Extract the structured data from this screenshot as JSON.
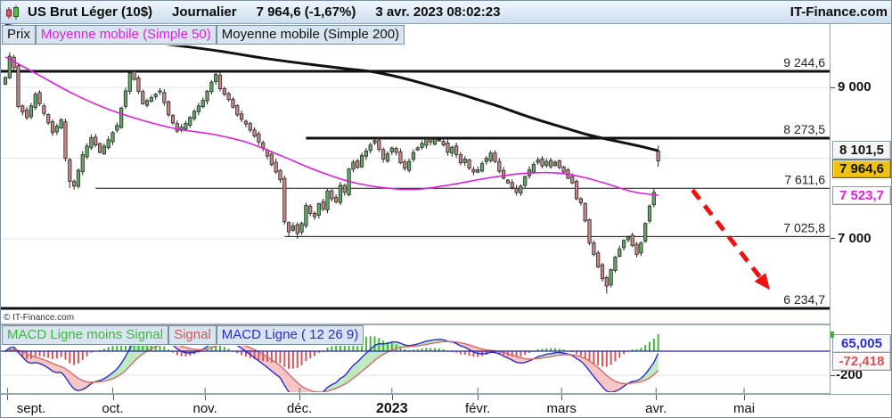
{
  "title_bar": {
    "instrument": "US Brut Léger (10$)",
    "timeframe": "Journalier",
    "quote": "7 964,6 (-1,67%)",
    "datetime": "3 avr. 2023 08:02:23",
    "brand": "IT-Finance.com"
  },
  "price_legend": {
    "price_label": "Prix",
    "ma50_label": "Moyenne mobile (Simple 50)",
    "ma200_label": "Moyenne mobile (Simple 200)"
  },
  "macd_legend": {
    "hist_label": "MACD Ligne moins Signal",
    "signal_label": "Signal",
    "macd_label": "MACD Ligne ( 12 26 9)"
  },
  "watermark": "© IT-Finance.com",
  "colors": {
    "up_fill": "#63a863",
    "down_fill": "#c98484",
    "candle_stroke": "#2a2a2a",
    "wick": "#222222",
    "ma50": "#dd1edd",
    "ma200": "#111111",
    "level": "#111111",
    "grid": "#e4e4e4",
    "arrow": "#ee1111",
    "macd_line": "#2a2ad0",
    "signal_line": "#d46a6a",
    "hist_up": "#3cb83c",
    "hist_down": "#d45555",
    "fill_up": "rgba(150,222,150,0.6)",
    "fill_down": "rgba(240,160,160,0.6)",
    "price_box_bg": "#efc113",
    "neutral_box_bg": "#f4f4f4",
    "ma50_text": "#dd1edd",
    "macd_text": "#2a2ad0",
    "signal_text": "#d45555"
  },
  "chart_data": {
    "type": "candlestick",
    "scale": "log",
    "price_range": [
      6080,
      10000
    ],
    "gridlines": [
      9000,
      8000,
      7000
    ],
    "axis_ticks": [
      {
        "label": "9 000",
        "value": 9000
      },
      {
        "label": "7 000",
        "value": 7000
      }
    ],
    "levels": [
      {
        "label": "9 244,6",
        "value": 9244.6,
        "weight": 3,
        "from_i": -1
      },
      {
        "label": "8 273,5",
        "value": 8273.5,
        "weight": 3,
        "from_i": 70
      },
      {
        "label": "7 611,6",
        "value": 7611.6,
        "weight": 1,
        "from_i": 21
      },
      {
        "label": "7 025,8",
        "value": 7025.8,
        "weight": 1,
        "from_i": 65
      },
      {
        "label": "6 234,7",
        "value": 6234.7,
        "weight": 3,
        "from_i": -1
      }
    ],
    "value_boxes": [
      {
        "label": "8 101,5",
        "value": 8101.5,
        "series": "ma200"
      },
      {
        "label": "7 964,6",
        "value": 7964.6,
        "series": "price"
      },
      {
        "label": "7 523,7",
        "value": 7523.7,
        "series": "ma50"
      }
    ],
    "candle_anchors": [
      [
        0,
        9150,
        9050
      ],
      [
        1,
        9480,
        null,
        9540
      ],
      [
        2,
        9300
      ],
      [
        3,
        8720
      ],
      [
        5,
        8560
      ],
      [
        7,
        8900
      ],
      [
        9,
        8620
      ],
      [
        11,
        8350
      ],
      [
        13,
        8530
      ],
      [
        14,
        8000
      ],
      [
        15,
        7700,
        null,
        null,
        7615
      ],
      [
        16,
        7640
      ],
      [
        18,
        8050
      ],
      [
        20,
        8280
      ],
      [
        22,
        8080
      ],
      [
        24,
        8250
      ],
      [
        26,
        8450
      ],
      [
        28,
        8950
      ],
      [
        29,
        9220,
        null,
        9265
      ],
      [
        30,
        9120
      ],
      [
        32,
        8760
      ],
      [
        34,
        8850
      ],
      [
        36,
        8950
      ],
      [
        38,
        8600
      ],
      [
        40,
        8370
      ],
      [
        42,
        8480
      ],
      [
        44,
        8650
      ],
      [
        46,
        8810
      ],
      [
        48,
        9080
      ],
      [
        49,
        9200,
        null,
        9248
      ],
      [
        50,
        8980
      ],
      [
        52,
        8820
      ],
      [
        54,
        8600
      ],
      [
        56,
        8470
      ],
      [
        58,
        8300
      ],
      [
        60,
        8140
      ],
      [
        62,
        7920
      ],
      [
        64,
        7720
      ],
      [
        65,
        7200
      ],
      [
        66,
        7080,
        null,
        null,
        7020
      ],
      [
        67,
        7150
      ],
      [
        68,
        7060,
        null,
        null,
        7000
      ],
      [
        69,
        7180
      ],
      [
        70,
        7400
      ],
      [
        71,
        7300
      ],
      [
        72,
        7260
      ],
      [
        73,
        7420
      ],
      [
        74,
        7350
      ],
      [
        75,
        7580
      ],
      [
        76,
        7480
      ],
      [
        77,
        7440
      ],
      [
        78,
        7650
      ],
      [
        79,
        7560
      ],
      [
        80,
        7860
      ],
      [
        81,
        7950
      ],
      [
        82,
        7880
      ],
      [
        83,
        8040
      ],
      [
        84,
        8100
      ],
      [
        85,
        8180
      ],
      [
        86,
        8240
      ],
      [
        87,
        8120
      ],
      [
        88,
        7990
      ],
      [
        89,
        8060
      ],
      [
        90,
        8140
      ],
      [
        91,
        8080
      ],
      [
        92,
        7940
      ],
      [
        93,
        7870
      ],
      [
        94,
        7960
      ],
      [
        95,
        8080
      ],
      [
        96,
        8140
      ],
      [
        97,
        8200
      ],
      [
        98,
        8260
      ],
      [
        99,
        8220
      ],
      [
        100,
        8260
      ],
      [
        101,
        8250
      ],
      [
        102,
        8180
      ],
      [
        103,
        8080
      ],
      [
        104,
        8150
      ],
      [
        105,
        8050
      ],
      [
        106,
        7940
      ],
      [
        107,
        7990
      ],
      [
        108,
        7870
      ],
      [
        109,
        7820
      ],
      [
        110,
        7850
      ],
      [
        111,
        7930
      ],
      [
        112,
        8000
      ],
      [
        113,
        8070
      ],
      [
        114,
        7960
      ],
      [
        115,
        7830
      ],
      [
        116,
        7740
      ],
      [
        117,
        7680
      ],
      [
        118,
        7620
      ],
      [
        119,
        7560
      ],
      [
        120,
        7640
      ],
      [
        121,
        7760
      ],
      [
        122,
        7850
      ],
      [
        123,
        7920
      ],
      [
        124,
        7980
      ],
      [
        125,
        7900
      ],
      [
        126,
        7960
      ],
      [
        127,
        7890
      ],
      [
        128,
        7950
      ],
      [
        129,
        7880
      ],
      [
        130,
        7820
      ],
      [
        131,
        7740
      ],
      [
        132,
        7680
      ],
      [
        133,
        7480
      ],
      [
        134,
        7430
      ],
      [
        135,
        7210
      ],
      [
        136,
        6950
      ],
      [
        137,
        6820
      ],
      [
        138,
        6680
      ],
      [
        139,
        6550
      ],
      [
        140,
        6470,
        null,
        null,
        6390
      ],
      [
        141,
        6650
      ],
      [
        142,
        6790
      ],
      [
        143,
        6880
      ],
      [
        144,
        6980
      ],
      [
        145,
        7020
      ],
      [
        146,
        6920
      ],
      [
        147,
        6820
      ],
      [
        148,
        6950
      ],
      [
        149,
        7180
      ],
      [
        150,
        7390
      ],
      [
        151,
        7560
      ],
      [
        152,
        7964.6,
        8100,
        8170,
        7890
      ]
    ],
    "ma50": [
      [
        0,
        9470
      ],
      [
        8,
        9180
      ],
      [
        16,
        8900
      ],
      [
        24,
        8680
      ],
      [
        32,
        8520
      ],
      [
        40,
        8400
      ],
      [
        48,
        8330
      ],
      [
        56,
        8220
      ],
      [
        64,
        8040
      ],
      [
        72,
        7850
      ],
      [
        80,
        7700
      ],
      [
        88,
        7620
      ],
      [
        96,
        7600
      ],
      [
        104,
        7660
      ],
      [
        112,
        7740
      ],
      [
        120,
        7800
      ],
      [
        128,
        7810
      ],
      [
        134,
        7760
      ],
      [
        140,
        7670
      ],
      [
        146,
        7570
      ],
      [
        152,
        7523.7
      ]
    ],
    "ma200": [
      [
        0,
        9980
      ],
      [
        10,
        9900
      ],
      [
        20,
        9820
      ],
      [
        30,
        9730
      ],
      [
        40,
        9650
      ],
      [
        50,
        9560
      ],
      [
        60,
        9450
      ],
      [
        70,
        9360
      ],
      [
        80,
        9280
      ],
      [
        85,
        9244
      ],
      [
        90,
        9180
      ],
      [
        95,
        9100
      ],
      [
        100,
        9010
      ],
      [
        105,
        8920
      ],
      [
        110,
        8820
      ],
      [
        115,
        8720
      ],
      [
        120,
        8610
      ],
      [
        125,
        8510
      ],
      [
        130,
        8420
      ],
      [
        135,
        8330
      ],
      [
        140,
        8260
      ],
      [
        144,
        8210
      ],
      [
        148,
        8160
      ],
      [
        152,
        8101.5
      ]
    ],
    "arrow": {
      "from": [
        160,
        7590
      ],
      "to": [
        178,
        6430
      ]
    },
    "months": [
      {
        "label": "sept.",
        "i": 0.5
      },
      {
        "label": "oct.",
        "i": 25
      },
      {
        "label": "nov.",
        "i": 46.5
      },
      {
        "label": "déc.",
        "i": 68.5
      },
      {
        "label": "2023",
        "i": 90,
        "bold": true
      },
      {
        "label": "févr.",
        "i": 110
      },
      {
        "label": "mars",
        "i": 129.5
      },
      {
        "label": "avr.",
        "i": 151.5
      },
      {
        "label": "mai",
        "i": 172
      }
    ],
    "macd": {
      "params": [
        12,
        26,
        9
      ],
      "y_range": [
        -348,
        215
      ],
      "axis_ticks": [
        {
          "label": "-200",
          "value": -200
        }
      ],
      "value_boxes": [
        {
          "label": "65,005",
          "value": 65.005,
          "series": "macd"
        },
        {
          "label": "-72,418",
          "value": -72.418,
          "series": "signal"
        }
      ],
      "hist_marker_value": 137.423
    }
  }
}
